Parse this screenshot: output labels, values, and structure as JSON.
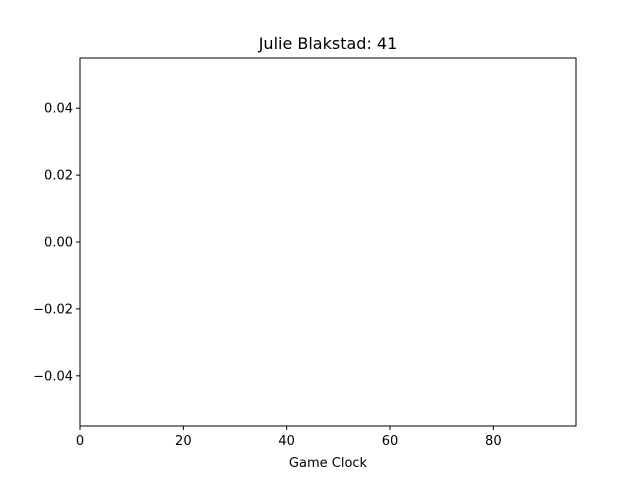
{
  "chart_data": {
    "type": "line",
    "title": "Julie Blakstad: 41",
    "xlabel": "Game Clock",
    "ylabel": "",
    "xlim": [
      0,
      96
    ],
    "ylim": [
      -0.055,
      0.055
    ],
    "xticks": [
      0,
      20,
      40,
      60,
      80
    ],
    "xtick_labels": [
      "0",
      "20",
      "40",
      "60",
      "80"
    ],
    "yticks": [
      -0.04,
      -0.02,
      0.0,
      0.02,
      0.04
    ],
    "ytick_labels": [
      "−0.04",
      "−0.02",
      "0.00",
      "0.02",
      "0.04"
    ],
    "grid": false,
    "series": []
  }
}
